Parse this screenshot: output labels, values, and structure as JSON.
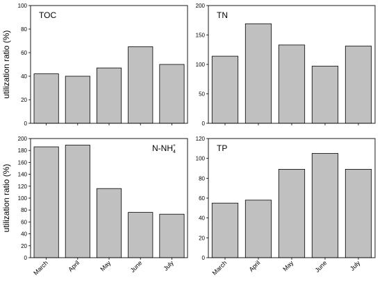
{
  "figure": {
    "ylabel_top": "utilization ratio (%)",
    "ylabel_bottom": "utilization ratio (%)"
  },
  "chart_data": [
    {
      "type": "bar",
      "label": "TOC",
      "categories": [
        "March",
        "April",
        "May",
        "June",
        "July"
      ],
      "values": [
        42,
        40,
        47,
        65,
        50
      ],
      "ylim": [
        0,
        100
      ],
      "yticks": [
        0,
        20,
        40,
        60,
        80,
        100
      ],
      "bar_color": "#c0c0c0",
      "grid": false
    },
    {
      "type": "bar",
      "label": "TN",
      "categories": [
        "March",
        "April",
        "May",
        "June",
        "July"
      ],
      "values": [
        114,
        169,
        133,
        97,
        131
      ],
      "ylim": [
        0,
        200
      ],
      "yticks": [
        0,
        50,
        100,
        150,
        200
      ],
      "bar_color": "#c0c0c0",
      "grid": false
    },
    {
      "type": "bar",
      "label_main": "N-NH",
      "label_sub": "4",
      "label_sup": "+",
      "categories": [
        "March",
        "April",
        "May",
        "June",
        "July"
      ],
      "values": [
        186,
        189,
        116,
        76,
        73
      ],
      "ylim": [
        0,
        200
      ],
      "yticks": [
        0,
        20,
        40,
        60,
        80,
        100,
        120,
        140,
        160,
        180,
        200
      ],
      "bar_color": "#c0c0c0",
      "grid": false
    },
    {
      "type": "bar",
      "label": "TP",
      "categories": [
        "March",
        "April",
        "May",
        "June",
        "July"
      ],
      "values": [
        55,
        58,
        89,
        105,
        89
      ],
      "ylim": [
        0,
        120
      ],
      "yticks": [
        0,
        20,
        40,
        60,
        80,
        100,
        120
      ],
      "bar_color": "#c0c0c0",
      "grid": false
    }
  ]
}
